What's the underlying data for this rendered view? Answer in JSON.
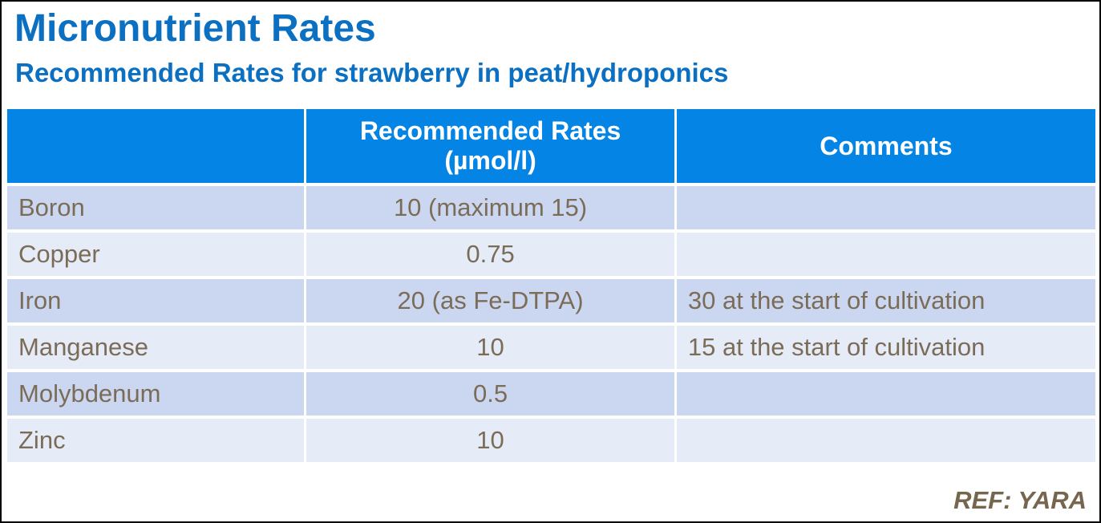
{
  "page": {
    "title": "Micronutrient Rates",
    "subtitle": "Recommended Rates for strawberry in peat/hydroponics",
    "reference": "REF: YARA"
  },
  "colors": {
    "title_blue": "#0b70c1",
    "header_blue": "#0484e4",
    "row_dark": "#cbd7f0",
    "row_light": "#e6ebf8",
    "cell_text_brown": "#7b6c58",
    "reference_brown": "#76664e"
  },
  "table": {
    "headers": {
      "element": "",
      "rate": "Recommended Rates\n(µmol/l)",
      "comment": "Comments"
    },
    "rows": [
      {
        "element": "Boron",
        "rate": "10 (maximum 15)",
        "comment": ""
      },
      {
        "element": "Copper",
        "rate": "0.75",
        "comment": ""
      },
      {
        "element": "Iron",
        "rate": "20 (as Fe-DTPA)",
        "comment": "30 at the start of cultivation"
      },
      {
        "element": "Manganese",
        "rate": "10",
        "comment": "15 at the start of cultivation"
      },
      {
        "element": "Molybdenum",
        "rate": "0.5",
        "comment": ""
      },
      {
        "element": "Zinc",
        "rate": "10",
        "comment": ""
      }
    ]
  }
}
